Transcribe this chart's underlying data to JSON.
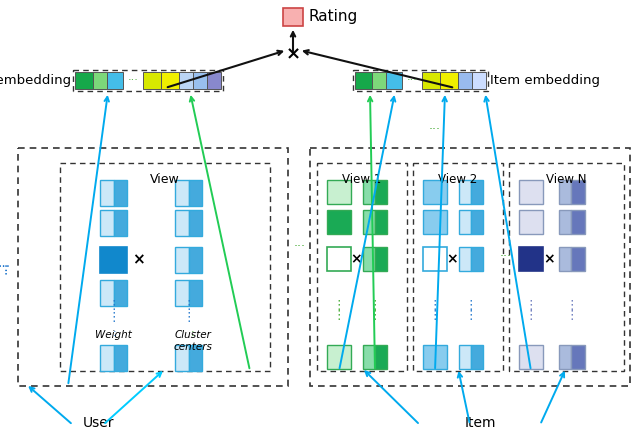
{
  "rating_box_color": "#f8b0b0",
  "rating_label": "Rating",
  "user_embed_label": "User embedding",
  "item_embed_label": "Item embedding",
  "user_label": "User",
  "item_label": "Item",
  "view_label": "View",
  "view1_label": "View 1",
  "view2_label": "View 2",
  "viewN_label": "View N",
  "weight_label": "Weight",
  "cluster_label": "Cluster\ncenters",
  "blue_arrow": "#00aaee",
  "green_arrow": "#22cc55",
  "black_arrow": "#111111",
  "cyan_arrow": "#00ccff"
}
